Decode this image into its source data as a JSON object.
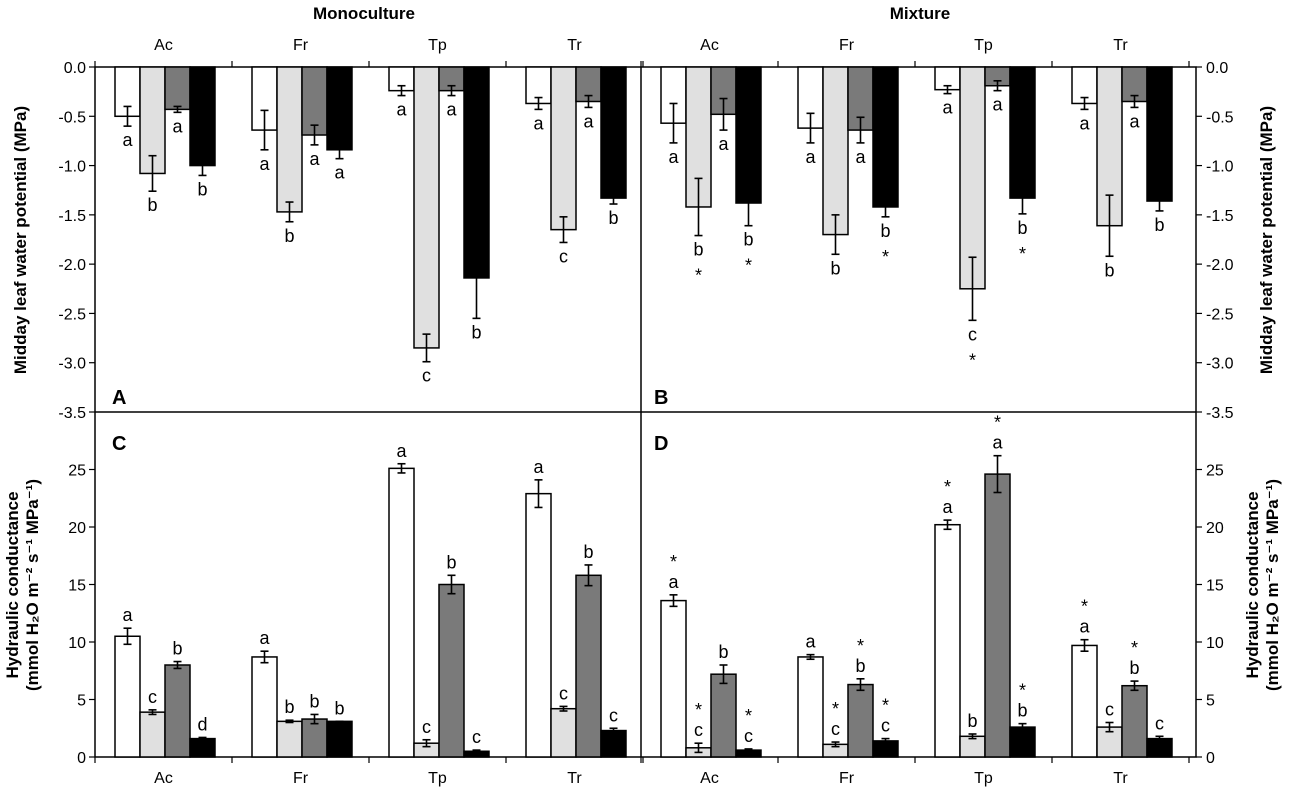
{
  "titles": {
    "left": "Monoculture",
    "right": "Mixture"
  },
  "panel_letters": [
    "A",
    "B",
    "C",
    "D"
  ],
  "y_labels": {
    "top_left": "Midday leaf water potential (MPa)",
    "top_right": "Midday leaf water potential (MPa)",
    "bottom_left_line1": "Hydraulic conductance",
    "bottom_left_line2": "(mmol H₂O m⁻² s⁻¹ MPa⁻¹)",
    "bottom_right_line1": "Hydraulic conductance",
    "bottom_right_line2": "(mmol H₂O m⁻² s⁻¹ MPa⁻¹)"
  },
  "species": [
    "Ac",
    "Fr",
    "Tp",
    "Tr"
  ],
  "colors": [
    "#ffffff",
    "#e0e0e0",
    "#7a7a7a",
    "#000000"
  ],
  "chart_data": [
    {
      "panel": "A",
      "type": "bar",
      "group": "Monoculture",
      "ylabel": "Midday leaf water potential (MPa)",
      "ylim": [
        -3.5,
        0.0
      ],
      "yticks": [
        "0.0",
        "-0.5",
        "-1.0",
        "-1.5",
        "-2.0",
        "-2.5",
        "-3.0",
        "-3.5"
      ],
      "categories": [
        "Ac",
        "Fr",
        "Tp",
        "Tr"
      ],
      "values": [
        [
          -0.5,
          -1.08,
          -0.43,
          -1.0
        ],
        [
          -0.64,
          -1.47,
          -0.69,
          -0.84
        ],
        [
          -0.24,
          -2.85,
          -0.24,
          -2.14
        ],
        [
          -0.37,
          -1.65,
          -0.35,
          -1.33
        ]
      ],
      "errors": [
        [
          0.1,
          0.18,
          0.03,
          0.1
        ],
        [
          0.2,
          0.1,
          0.1,
          0.09
        ],
        [
          0.05,
          0.14,
          0.05,
          0.41
        ],
        [
          0.06,
          0.13,
          0.06,
          0.06
        ]
      ],
      "letters": [
        [
          "a",
          "b",
          "a",
          "b"
        ],
        [
          "a",
          "b",
          "a",
          "a"
        ],
        [
          "a",
          "c",
          "a",
          "b"
        ],
        [
          "a",
          "c",
          "a",
          "b"
        ]
      ],
      "stars": [
        [
          false,
          false,
          false,
          false
        ],
        [
          false,
          false,
          false,
          false
        ],
        [
          false,
          false,
          false,
          false
        ],
        [
          false,
          false,
          false,
          false
        ]
      ]
    },
    {
      "panel": "B",
      "type": "bar",
      "group": "Mixture",
      "ylabel": "Midday leaf water potential (MPa)",
      "ylim": [
        -3.5,
        0.0
      ],
      "yticks": [
        "0.0",
        "-0.5",
        "-1.0",
        "-1.5",
        "-2.0",
        "-2.5",
        "-3.0",
        "-3.5"
      ],
      "categories": [
        "Ac",
        "Fr",
        "Tp",
        "Tr"
      ],
      "values": [
        [
          -0.57,
          -1.42,
          -0.48,
          -1.38
        ],
        [
          -0.62,
          -1.7,
          -0.64,
          -1.42
        ],
        [
          -0.23,
          -2.25,
          -0.19,
          -1.33
        ],
        [
          -0.37,
          -1.61,
          -0.35,
          -1.36
        ]
      ],
      "errors": [
        [
          0.2,
          0.29,
          0.16,
          0.23
        ],
        [
          0.15,
          0.2,
          0.13,
          0.1
        ],
        [
          0.04,
          0.32,
          0.05,
          0.16
        ],
        [
          0.06,
          0.31,
          0.06,
          0.1
        ]
      ],
      "letters": [
        [
          "a",
          "b",
          "a",
          "b"
        ],
        [
          "a",
          "b",
          "a",
          "b"
        ],
        [
          "a",
          "c",
          "a",
          "b"
        ],
        [
          "a",
          "b",
          "a",
          "b"
        ]
      ],
      "stars": [
        [
          false,
          true,
          false,
          true
        ],
        [
          false,
          false,
          false,
          true
        ],
        [
          false,
          true,
          false,
          true
        ],
        [
          false,
          false,
          false,
          false
        ]
      ]
    },
    {
      "panel": "C",
      "type": "bar",
      "group": "Monoculture",
      "ylabel": "Hydraulic conductance (mmol H₂O m⁻² s⁻¹ MPa⁻¹)",
      "ylim": [
        0,
        30
      ],
      "yticks": [
        "0",
        "5",
        "10",
        "15",
        "20",
        "25"
      ],
      "categories": [
        "Ac",
        "Fr",
        "Tp",
        "Tr"
      ],
      "values": [
        [
          10.5,
          3.9,
          8.0,
          1.6
        ],
        [
          8.7,
          3.1,
          3.3,
          3.1
        ],
        [
          25.1,
          1.2,
          15.0,
          0.5
        ],
        [
          22.9,
          4.2,
          15.8,
          2.3
        ]
      ],
      "errors": [
        [
          0.7,
          0.2,
          0.3,
          0.1
        ],
        [
          0.5,
          0.1,
          0.4,
          0.0
        ],
        [
          0.4,
          0.3,
          0.8,
          0.1
        ],
        [
          1.2,
          0.2,
          0.9,
          0.2
        ]
      ],
      "letters": [
        [
          "a",
          "c",
          "b",
          "d"
        ],
        [
          "a",
          "b",
          "b",
          "b"
        ],
        [
          "a",
          "c",
          "b",
          "c"
        ],
        [
          "a",
          "c",
          "b",
          "c"
        ]
      ],
      "stars": [
        [
          false,
          false,
          false,
          false
        ],
        [
          false,
          false,
          false,
          false
        ],
        [
          false,
          false,
          false,
          false
        ],
        [
          false,
          false,
          false,
          false
        ]
      ]
    },
    {
      "panel": "D",
      "type": "bar",
      "group": "Mixture",
      "ylabel": "Hydraulic conductance (mmol H₂O m⁻² s⁻¹ MPa⁻¹)",
      "ylim": [
        0,
        30
      ],
      "yticks": [
        "0",
        "5",
        "10",
        "15",
        "20",
        "25"
      ],
      "categories": [
        "Ac",
        "Fr",
        "Tp",
        "Tr"
      ],
      "values": [
        [
          13.6,
          0.8,
          7.2,
          0.6
        ],
        [
          8.7,
          1.1,
          6.3,
          1.4
        ],
        [
          20.2,
          1.8,
          24.6,
          2.6
        ],
        [
          9.7,
          2.6,
          6.2,
          1.6
        ]
      ],
      "errors": [
        [
          0.5,
          0.4,
          0.8,
          0.1
        ],
        [
          0.2,
          0.2,
          0.5,
          0.2
        ],
        [
          0.4,
          0.2,
          1.6,
          0.3
        ],
        [
          0.5,
          0.4,
          0.4,
          0.2
        ]
      ],
      "letters": [
        [
          "a",
          "c",
          "b",
          "c"
        ],
        [
          "a",
          "c",
          "b",
          "c"
        ],
        [
          "a",
          "b",
          "a",
          "b"
        ],
        [
          "a",
          "c",
          "b",
          "c"
        ]
      ],
      "stars": [
        [
          true,
          true,
          false,
          true
        ],
        [
          false,
          true,
          true,
          true
        ],
        [
          true,
          false,
          true,
          true
        ],
        [
          true,
          false,
          true,
          false
        ]
      ]
    }
  ]
}
